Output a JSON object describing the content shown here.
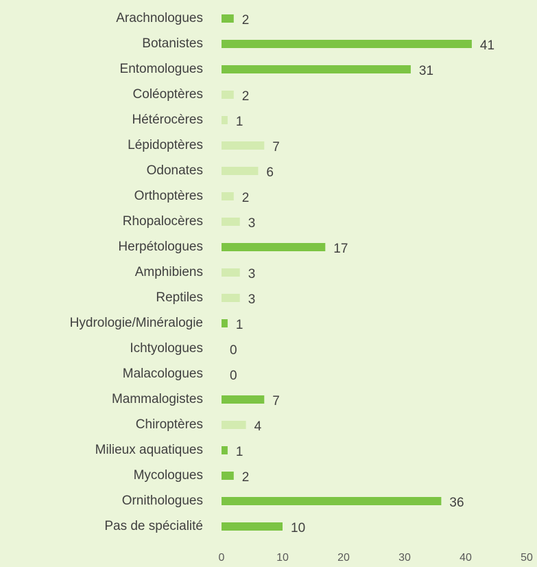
{
  "chart_data": {
    "type": "hbar",
    "categories": [
      "Arachnologues",
      "Botanistes",
      "Entomologues",
      "Coléoptères",
      "Hétérocères",
      "Lépidoptères",
      "Odonates",
      "Orthoptères",
      "Rhopalocères",
      "Herpétologues",
      "Amphibiens",
      "Reptiles",
      "Hydrologie/Minéralogie",
      "Ichtyologues",
      "Malacologues",
      "Mammalogistes",
      "Chiroptères",
      "Milieux aquatiques",
      "Mycologues",
      "Ornithologues",
      "Pas de spécialité"
    ],
    "values": [
      2,
      41,
      31,
      2,
      1,
      7,
      6,
      2,
      3,
      17,
      3,
      3,
      1,
      0,
      0,
      7,
      4,
      1,
      2,
      36,
      10
    ],
    "colors": [
      "#7cc444",
      "#7cc444",
      "#7cc444",
      "#d3ebb0",
      "#d3ebb0",
      "#d3ebb0",
      "#d3ebb0",
      "#d3ebb0",
      "#d3ebb0",
      "#7cc444",
      "#d3ebb0",
      "#d3ebb0",
      "#7cc444",
      "#7cc444",
      "#7cc444",
      "#7cc444",
      "#d3ebb0",
      "#7cc444",
      "#7cc444",
      "#7cc444",
      "#7cc444"
    ],
    "xlim": [
      0,
      50
    ],
    "xticks": [
      0,
      10,
      20,
      30,
      40,
      50
    ],
    "grid": false
  }
}
